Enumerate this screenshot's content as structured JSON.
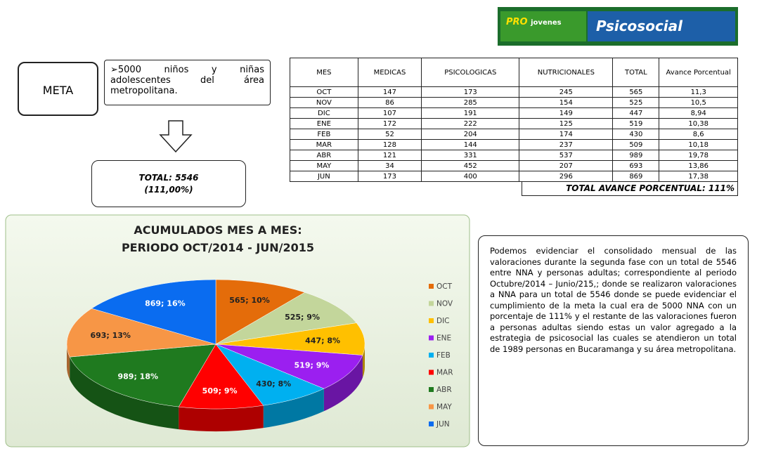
{
  "logo": {
    "brand_top": "PRO",
    "brand_bottom": "jovenes",
    "section": "Psicosocial"
  },
  "meta": {
    "label": "META",
    "goal": "➢5000 niños y niñas adolescentes del área metropolitana.",
    "total": "TOTAL: 5546",
    "total_pct": "(111,00%)"
  },
  "table": {
    "header": [
      "MES",
      "MEDICAS",
      "PSICOLOGICAS",
      "NUTRICIONALES",
      "TOTAL",
      "Avance Porcentual"
    ],
    "rows": [
      [
        "OCT",
        "147",
        "173",
        "245",
        "565",
        "11,3"
      ],
      [
        "NOV",
        "86",
        "285",
        "154",
        "525",
        "10,5"
      ],
      [
        "DIC",
        "107",
        "191",
        "149",
        "447",
        "8,94"
      ],
      [
        "ENE",
        "172",
        "222",
        "125",
        "519",
        "10,38"
      ],
      [
        "FEB",
        "52",
        "204",
        "174",
        "430",
        "8,6"
      ],
      [
        "MAR",
        "128",
        "144",
        "237",
        "509",
        "10,18"
      ],
      [
        "ABR",
        "121",
        "331",
        "537",
        "989",
        "19,78"
      ],
      [
        "MAY",
        "34",
        "452",
        "207",
        "693",
        "13,86"
      ],
      [
        "JUN",
        "173",
        "400",
        "296",
        "869",
        "17,38"
      ]
    ],
    "footer": "TOTAL AVANCE PORCENTUAL: 111%"
  },
  "chart_data": {
    "type": "pie",
    "title": "ACUMULADOS MES A MES:",
    "subtitle": "PERIODO OCT/2014 - JUN/2015",
    "categories": [
      "OCT",
      "NOV",
      "DIC",
      "ENE",
      "FEB",
      "MAR",
      "ABR",
      "MAY",
      "JUN"
    ],
    "values": [
      565,
      525,
      447,
      519,
      430,
      509,
      989,
      693,
      869
    ],
    "value_labels": [
      "565; 10%",
      "525; 9%",
      "447; 8%",
      "519; 9%",
      "430; 8%",
      "509; 9%",
      "989; 18%",
      "693; 13%",
      "869; 16%"
    ],
    "colors": [
      "#e46c0a",
      "#c3d69b",
      "#ffc000",
      "#9b1ff0",
      "#00b0f0",
      "#ff0000",
      "#1f7a1f",
      "#f79646",
      "#0a6cf0"
    ],
    "legend": "right"
  },
  "paragraph": "Podemos evidenciar el consolidado mensual de las valoraciones durante la segunda fase con un total de 5546 entre NNA y personas adultas; correspondiente al periodo Octubre/2014 – Junio/215,; donde se realizaron valoraciones a NNA para un total de 5546 donde se puede evidenciar el cumplimiento de la meta la cual era de 5000 NNA con un porcentaje de 111% y el restante de las valoraciones fueron a personas adultas siendo estas un valor agregado a la estrategia de psicosocial las cuales se atendieron un total de 1989 personas en Bucaramanga y su área metropolitana."
}
